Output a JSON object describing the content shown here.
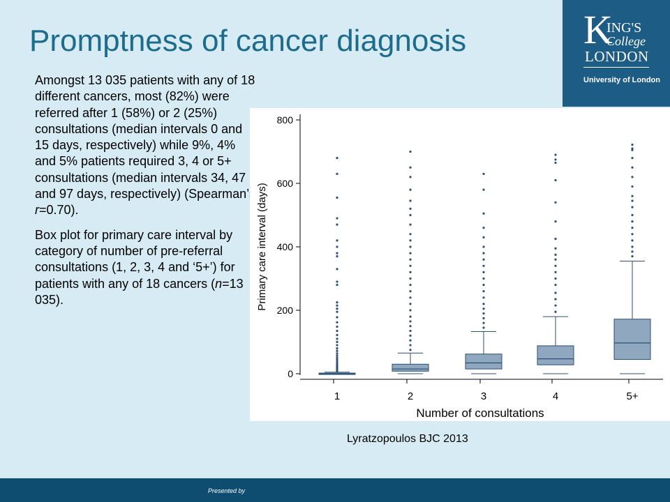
{
  "slide": {
    "title": "Promptness of cancer diagnosis",
    "logo": {
      "k": "K",
      "ings": "ING'S",
      "college": "College",
      "london": "LONDON",
      "university": "University of London",
      "background": "#1d5c84"
    },
    "paragraph1": {
      "text": "Amongst 13 035 patients with any of 18 different cancers, most (82%) were referred after 1 (58%) or 2 (25%) consultations (median intervals 0 and 15 days, respectively) while 9%, 4% and 5% patients required 3, 4 or 5+ consultations (median intervals 34, 47 and 97 days, respectively) (Spearman’s ",
      "stat_symbol": "r",
      "stat_value": "=0.70)."
    },
    "paragraph2": {
      "text": "Box plot for primary care interval by category of number of pre-referral consultations (1, 2, 3, 4 and ‘5+’) for patients with any of 18 cancers (",
      "n_symbol": "n",
      "n_value": "=13 035)."
    },
    "citation": "Lyratzopoulos BJC 2013",
    "footer": "Presented by",
    "colors": {
      "title": "#1e6c8c",
      "background": "#d6ebf4",
      "footer": "#0f4d70",
      "box_fill": "#8fa7bf",
      "box_stroke": "#2c4f74"
    }
  },
  "chart_data": {
    "type": "box",
    "xlabel": "Number of consultations",
    "ylabel": "Primary care interval (days)",
    "categories": [
      "1",
      "2",
      "3",
      "4",
      "5+"
    ],
    "ylim": [
      0,
      820
    ],
    "yticks": [
      0,
      200,
      400,
      600,
      800
    ],
    "grid": false,
    "boxes": [
      {
        "category": "1",
        "min": 0,
        "q1": 0,
        "median": 0,
        "q3": 2,
        "whisker_high": 5,
        "outliers": [
          8,
          12,
          15,
          18,
          22,
          27,
          32,
          38,
          44,
          50,
          57,
          64,
          72,
          80,
          90,
          100,
          110,
          122,
          135,
          148,
          162,
          178,
          195,
          205,
          215,
          225,
          280,
          290,
          330,
          370,
          380,
          400,
          420,
          470,
          490,
          555,
          630,
          680
        ]
      },
      {
        "category": "2",
        "min": 0,
        "q1": 8,
        "median": 15,
        "q3": 30,
        "whisker_high": 65,
        "outliers": [
          75,
          90,
          105,
          120,
          135,
          150,
          165,
          180,
          200,
          220,
          240,
          260,
          280,
          300,
          320,
          340,
          360,
          380,
          400,
          420,
          440,
          470,
          500,
          520,
          545,
          580,
          620,
          650,
          700
        ]
      },
      {
        "category": "3",
        "min": 0,
        "q1": 15,
        "median": 34,
        "q3": 62,
        "whisker_high": 133,
        "outliers": [
          145,
          160,
          175,
          190,
          205,
          220,
          240,
          260,
          280,
          300,
          320,
          340,
          360,
          380,
          400,
          430,
          460,
          505,
          580,
          630
        ]
      },
      {
        "category": "4",
        "min": 0,
        "q1": 28,
        "median": 47,
        "q3": 88,
        "whisker_high": 180,
        "outliers": [
          195,
          215,
          235,
          255,
          280,
          300,
          320,
          340,
          360,
          375,
          395,
          425,
          480,
          540,
          610,
          665,
          675,
          690
        ]
      },
      {
        "category": "5+",
        "min": 0,
        "q1": 45,
        "median": 97,
        "q3": 172,
        "whisker_high": 355,
        "outliers": [
          370,
          385,
          400,
          420,
          440,
          460,
          480,
          500,
          525,
          545,
          560,
          590,
          620,
          650,
          680,
          705,
          710,
          722
        ]
      }
    ]
  }
}
